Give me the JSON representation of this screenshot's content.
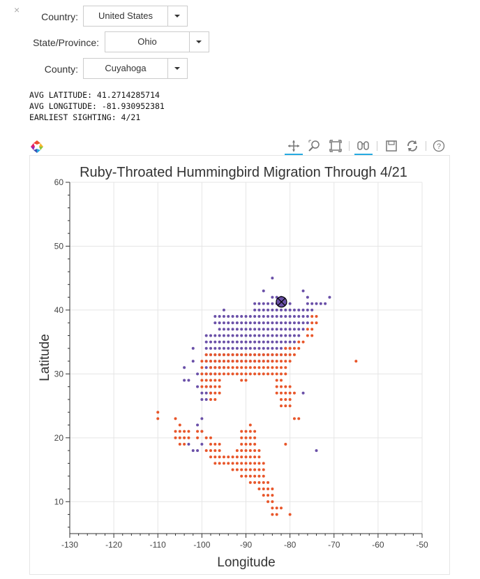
{
  "controls": {
    "close_label": "×",
    "country": {
      "label": "Country:",
      "value": "United States"
    },
    "state": {
      "label": "State/Province:",
      "value": "Ohio"
    },
    "county": {
      "label": "County:",
      "value": "Cuyahoga"
    }
  },
  "stats": {
    "avg_latitude": "AVG LATITUDE: 41.2714285714",
    "avg_longitude": "AVG LONGITUDE: -81.930952381",
    "earliest": "EARLIEST SIGHTING: 4/21"
  },
  "toolbar": {
    "tools": [
      "pan-icon",
      "wheel-zoom-icon",
      "box-zoom-icon",
      "hover-icon",
      "save-icon",
      "reset-icon",
      "help-icon"
    ],
    "active": [
      "pan-icon",
      "hover-icon"
    ],
    "accent_color": "#26aae1"
  },
  "chart_data": {
    "type": "scatter",
    "title": "Ruby-Throated Hummingbird Migration Through 4/21",
    "xlabel": "Longitude",
    "ylabel": "Latitude",
    "xlim": [
      -130,
      -50
    ],
    "ylim": [
      5,
      60
    ],
    "xticks": [
      -130,
      -120,
      -110,
      -100,
      -90,
      -80,
      -70,
      -60,
      -50
    ],
    "yticks": [
      10,
      20,
      30,
      40,
      50,
      60
    ],
    "grid": true,
    "colors": {
      "north": "#6a50a8",
      "south": "#e8562a",
      "marker_fill": "#6a50a8"
    },
    "series": [
      {
        "color": "#6a50a8",
        "rows": [
          {
            "lat": 45,
            "lons": [
              -84
            ]
          },
          {
            "lat": 43,
            "lons": [
              -86,
              -77
            ]
          },
          {
            "lat": 42,
            "lons": [
              -84,
              -83,
              -82,
              -76,
              -71
            ]
          },
          {
            "lat": 41,
            "lons": [
              -88,
              -87,
              -86,
              -85,
              -84,
              -83,
              -82,
              -81,
              -80,
              -76,
              -75,
              -74,
              -73,
              -72
            ]
          },
          {
            "lat": 40,
            "lons": [
              -95,
              -88,
              -87,
              -86,
              -85,
              -84,
              -83,
              -82,
              -81,
              -80,
              -79,
              -78,
              -77,
              -76,
              -75
            ]
          },
          {
            "lat": 39,
            "lons": [
              -97,
              -96,
              -95,
              -94,
              -93,
              -92,
              -91,
              -90,
              -89,
              -88,
              -87,
              -86,
              -85,
              -84,
              -83,
              -82,
              -81,
              -80,
              -79,
              -78,
              -77,
              -76
            ]
          },
          {
            "lat": 38,
            "lons": [
              -97,
              -96,
              -95,
              -94,
              -93,
              -92,
              -91,
              -90,
              -89,
              -88,
              -87,
              -86,
              -85,
              -84,
              -83,
              -82,
              -81,
              -80,
              -79,
              -78,
              -77,
              -76
            ]
          },
          {
            "lat": 37,
            "lons": [
              -96,
              -95,
              -94,
              -93,
              -92,
              -91,
              -90,
              -89,
              -88,
              -87,
              -86,
              -85,
              -84,
              -83,
              -82,
              -81,
              -80,
              -79,
              -78,
              -77
            ]
          },
          {
            "lat": 36,
            "lons": [
              -99,
              -98,
              -97,
              -96,
              -95,
              -94,
              -93,
              -92,
              -91,
              -90,
              -89,
              -88,
              -87,
              -86,
              -85,
              -84,
              -83,
              -82,
              -81,
              -80,
              -79,
              -78
            ]
          },
          {
            "lat": 35,
            "lons": [
              -99,
              -98,
              -97,
              -96,
              -95,
              -94,
              -93,
              -92,
              -91,
              -90,
              -89,
              -88,
              -87,
              -86,
              -85,
              -84,
              -83,
              -82,
              -81,
              -80,
              -79
            ]
          },
          {
            "lat": 34,
            "lons": [
              -102,
              -99,
              -98,
              -97,
              -96,
              -95,
              -94,
              -93,
              -92,
              -91,
              -90,
              -89,
              -88,
              -87,
              -86,
              -85,
              -84,
              -83,
              -82,
              -81,
              -80
            ]
          },
          {
            "lat": 33,
            "lons": [
              -99,
              -98,
              -97,
              -96,
              -95,
              -94,
              -93,
              -92,
              -91,
              -90,
              -89,
              -88,
              -87,
              -86,
              -85,
              -84,
              -83,
              -82,
              -81
            ]
          },
          {
            "lat": 32,
            "lons": [
              -102,
              -99,
              -98,
              -97,
              -96,
              -95,
              -94,
              -93,
              -92,
              -91,
              -90,
              -89,
              -88,
              -87,
              -86,
              -85,
              -84
            ]
          },
          {
            "lat": 31,
            "lons": [
              -104,
              -99,
              -98,
              -97,
              -96,
              -95
            ]
          },
          {
            "lat": 30,
            "lons": [
              -101,
              -99,
              -98,
              -97
            ]
          },
          {
            "lat": 29,
            "lons": [
              -104,
              -103
            ]
          },
          {
            "lat": 28,
            "lons": [
              -101,
              -99,
              -98
            ]
          },
          {
            "lat": 27,
            "lons": [
              -100,
              -99,
              -98,
              -77
            ]
          },
          {
            "lat": 26,
            "lons": [
              -100,
              -99
            ]
          },
          {
            "lat": 23,
            "lons": [
              -100
            ]
          },
          {
            "lat": 22,
            "lons": [
              -101
            ]
          },
          {
            "lat": 21,
            "lons": [
              -100
            ]
          },
          {
            "lat": 19,
            "lons": [
              -103,
              -100
            ]
          },
          {
            "lat": 18,
            "lons": [
              -102,
              -101,
              -74
            ]
          }
        ]
      },
      {
        "color": "#e8562a",
        "rows": [
          {
            "lat": 39,
            "lons": [
              -75,
              -74
            ]
          },
          {
            "lat": 38,
            "lons": [
              -75,
              -74
            ]
          },
          {
            "lat": 37,
            "lons": [
              -76,
              -75
            ]
          },
          {
            "lat": 36,
            "lons": [
              -76,
              -75
            ]
          },
          {
            "lat": 35,
            "lons": [
              -78,
              -77
            ]
          },
          {
            "lat": 34,
            "lons": [
              -81,
              -80,
              -79,
              -78
            ]
          },
          {
            "lat": 33,
            "lons": [
              -99,
              -98,
              -97,
              -96,
              -95,
              -94,
              -93,
              -92,
              -91,
              -90,
              -89,
              -88,
              -87,
              -86,
              -85,
              -84,
              -83,
              -82,
              -81,
              -80,
              -79
            ]
          },
          {
            "lat": 32,
            "lons": [
              -100,
              -99,
              -98,
              -97,
              -96,
              -95,
              -94,
              -93,
              -92,
              -91,
              -90,
              -89,
              -88,
              -87,
              -86,
              -85,
              -84,
              -83,
              -82,
              -81,
              -80,
              -65
            ]
          },
          {
            "lat": 31,
            "lons": [
              -100,
              -98,
              -97,
              -96,
              -95,
              -94,
              -93,
              -92,
              -91,
              -90,
              -89,
              -88,
              -87,
              -86,
              -85,
              -84,
              -83,
              -82,
              -81
            ]
          },
          {
            "lat": 30,
            "lons": [
              -100,
              -99,
              -98,
              -97,
              -96,
              -95,
              -94,
              -93,
              -92,
              -91,
              -90,
              -89,
              -88,
              -87,
              -86,
              -85,
              -84,
              -83,
              -82,
              -81
            ]
          },
          {
            "lat": 29,
            "lons": [
              -100,
              -99,
              -98,
              -97,
              -96,
              -91,
              -90,
              -83,
              -82
            ]
          },
          {
            "lat": 28,
            "lons": [
              -100,
              -99,
              -98,
              -97,
              -96,
              -83,
              -82,
              -81,
              -80
            ]
          },
          {
            "lat": 27,
            "lons": [
              -98,
              -97,
              -96,
              -83,
              -82,
              -81,
              -80,
              -79
            ]
          },
          {
            "lat": 26,
            "lons": [
              -98,
              -97,
              -82,
              -81,
              -80
            ]
          },
          {
            "lat": 25,
            "lons": [
              -82,
              -81,
              -80
            ]
          },
          {
            "lat": 24,
            "lons": [
              -110
            ]
          },
          {
            "lat": 23,
            "lons": [
              -110,
              -106,
              -79,
              -78
            ]
          },
          {
            "lat": 22,
            "lons": [
              -105,
              -89
            ]
          },
          {
            "lat": 21,
            "lons": [
              -106,
              -105,
              -104,
              -103,
              -101,
              -100,
              -91,
              -90,
              -89,
              -88
            ]
          },
          {
            "lat": 20,
            "lons": [
              -106,
              -105,
              -104,
              -103,
              -101,
              -99,
              -98,
              -91,
              -90,
              -89,
              -88
            ]
          },
          {
            "lat": 19,
            "lons": [
              -105,
              -104,
              -98,
              -97,
              -96,
              -91,
              -90,
              -89,
              -88,
              -81
            ]
          },
          {
            "lat": 18,
            "lons": [
              -99,
              -98,
              -97,
              -96,
              -92,
              -91,
              -90,
              -89,
              -88,
              -87
            ]
          },
          {
            "lat": 17,
            "lons": [
              -98,
              -97,
              -96,
              -95,
              -94,
              -93,
              -92,
              -91,
              -90,
              -89,
              -88,
              -87
            ]
          },
          {
            "lat": 16,
            "lons": [
              -97,
              -96,
              -95,
              -94,
              -93,
              -92,
              -91,
              -90,
              -89,
              -88,
              -87,
              -86
            ]
          },
          {
            "lat": 15,
            "lons": [
              -93,
              -92,
              -91,
              -90,
              -89,
              -88,
              -87,
              -86
            ]
          },
          {
            "lat": 14,
            "lons": [
              -91,
              -90,
              -89,
              -88,
              -87,
              -86
            ]
          },
          {
            "lat": 13,
            "lons": [
              -89,
              -88,
              -87,
              -86,
              -85
            ]
          },
          {
            "lat": 12,
            "lons": [
              -87,
              -86,
              -85,
              -84
            ]
          },
          {
            "lat": 11,
            "lons": [
              -86,
              -85,
              -84
            ]
          },
          {
            "lat": 10,
            "lons": [
              -85,
              -84
            ]
          },
          {
            "lat": 9,
            "lons": [
              -84,
              -83,
              -82
            ]
          },
          {
            "lat": 8,
            "lons": [
              -84,
              -83,
              -80
            ]
          }
        ]
      }
    ],
    "highlight": {
      "lon": -81.930952381,
      "lat": 41.2714285714,
      "marker": "circle_x"
    }
  }
}
